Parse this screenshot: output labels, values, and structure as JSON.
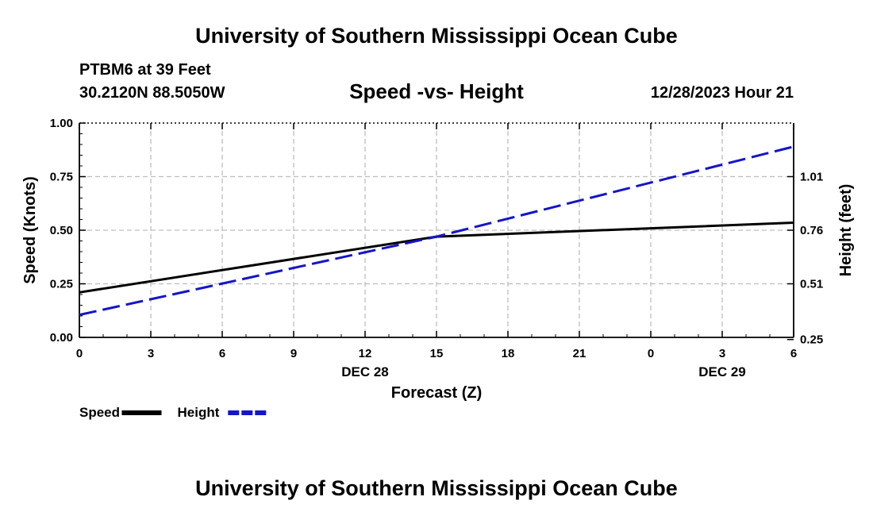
{
  "header": {
    "title": "University of Southern Mississippi Ocean Cube",
    "station": "PTBM6 at 39 Feet",
    "coordinates": "30.2120N  88.5050W",
    "datetime": "12/28/2023 Hour 21"
  },
  "footer": {
    "title": "University of Southern Mississippi Ocean Cube"
  },
  "chart_data": {
    "type": "line",
    "title": "Speed -vs- Height",
    "xlabel": "Forecast (Z)",
    "ylabel": "Speed (Knots)",
    "y2label": "Height (feet)",
    "x_tick_labels": [
      "0",
      "3",
      "6",
      "9",
      "12",
      "15",
      "18",
      "21",
      "0",
      "3",
      "6"
    ],
    "date_labels": [
      {
        "text": "DEC 28",
        "at_tick": 4
      },
      {
        "text": "DEC 29",
        "at_tick": 9
      }
    ],
    "x": [
      0,
      3,
      6,
      9,
      12,
      15,
      18,
      21,
      24,
      27,
      30
    ],
    "xlim": [
      0,
      30
    ],
    "ylim": [
      0,
      1
    ],
    "y_ticks": [
      "0.00",
      "0.25",
      "0.50",
      "0.75",
      "1.00"
    ],
    "y2lim": [
      0.26,
      1.26
    ],
    "y2_ticks": [
      0.25,
      0.51,
      0.76,
      1.01
    ],
    "y2_tick_labels": [
      "0.25",
      "0.51",
      "0.76",
      "1.01"
    ],
    "grid": true,
    "series": [
      {
        "name": "Speed",
        "axis": "left",
        "color": "#000000",
        "dash": "solid",
        "x": [
          0,
          15,
          30
        ],
        "values": [
          0.21,
          0.47,
          0.535
        ]
      },
      {
        "name": "Height",
        "axis": "right",
        "color": "#1515c8",
        "dash": "dashed",
        "x": [
          0,
          15,
          30
        ],
        "values": [
          0.365,
          0.73,
          1.15
        ]
      }
    ],
    "legend": [
      {
        "label": "Speed",
        "color": "#000000",
        "dash": "solid"
      },
      {
        "label": "Height",
        "color": "#1515c8",
        "dash": "dashed"
      }
    ]
  }
}
